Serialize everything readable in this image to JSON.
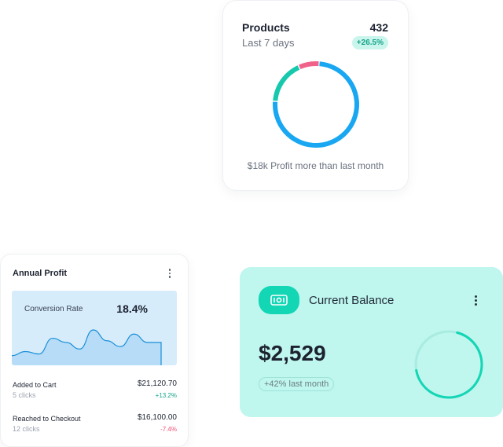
{
  "products": {
    "title": "Products",
    "count": "432",
    "period": "Last 7 days",
    "badge": "+26.5%",
    "footer": "$18k Profit more than last month",
    "donut_segments": [
      {
        "value": 75,
        "color": "#1aa7f2"
      },
      {
        "value": 17,
        "color": "#16c9ad"
      },
      {
        "value": 8,
        "color": "#f0628a"
      }
    ]
  },
  "profit": {
    "title": "Annual Profit",
    "conversion_label": "Conversion Rate",
    "conversion_value": "18.4%",
    "sparkline": [
      4,
      9,
      6,
      25,
      20,
      12,
      35,
      22,
      15,
      30,
      20,
      20
    ],
    "rows": [
      {
        "name": "Added to Cart",
        "clicks": "5 clicks",
        "amount": "$21,120.70",
        "change": "+13.2%"
      },
      {
        "name": "Reached to Checkout",
        "clicks": "12 clicks",
        "amount": "$16,100.00",
        "change": "-7.4%"
      }
    ]
  },
  "balance": {
    "title": "Current Balance",
    "amount": "$2,529",
    "delta": "+42% last month",
    "progress": 0.68,
    "icon": "banknote-icon",
    "accent": "#13d6b5",
    "background": "#bff6ee"
  }
}
